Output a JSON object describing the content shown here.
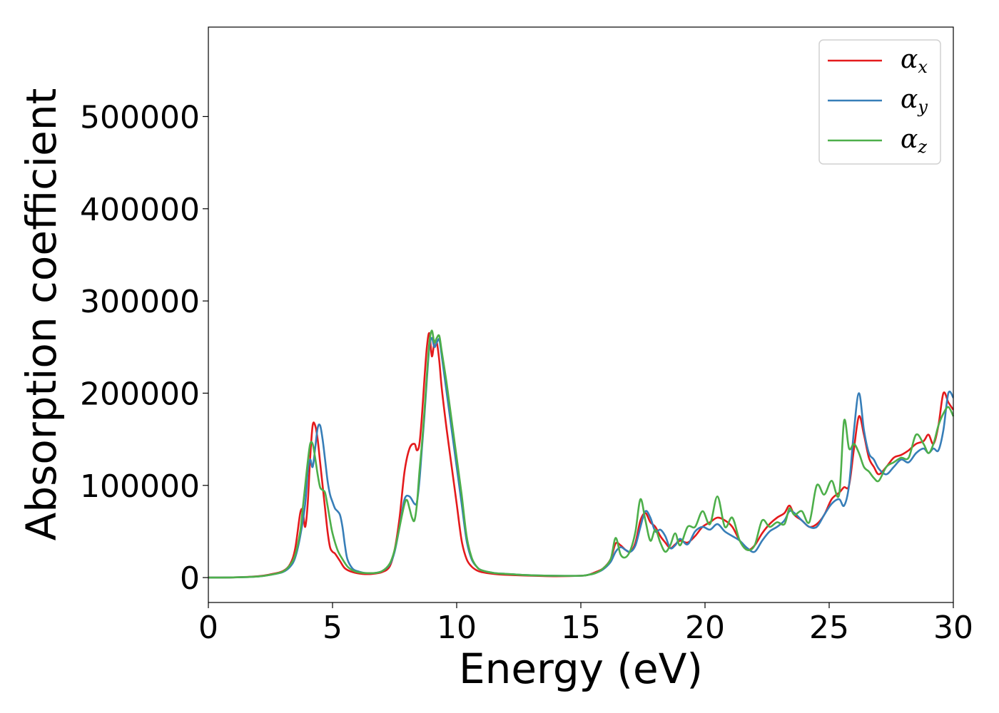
{
  "chart_data": {
    "type": "line",
    "title": "",
    "xlabel": "Energy (eV)",
    "ylabel": "Absorption coefficient",
    "xlim": [
      0,
      30
    ],
    "ylim": [
      -27000,
      597000
    ],
    "xticks": [
      0,
      5,
      10,
      15,
      20,
      25,
      30
    ],
    "xtick_labels": [
      "0",
      "5",
      "10",
      "15",
      "20",
      "25",
      "30"
    ],
    "yticks": [
      0,
      100000,
      200000,
      300000,
      400000,
      500000
    ],
    "ytick_labels": [
      "0",
      "100000",
      "200000",
      "300000",
      "400000",
      "500000"
    ],
    "grid": false,
    "legend_position": "top-right",
    "series": [
      {
        "name": "αx",
        "symbol": "α",
        "subscript": "x",
        "color": "#e41a1c",
        "x": [
          0,
          1,
          2,
          2.5,
          3,
          3.3,
          3.5,
          3.7,
          3.8,
          3.9,
          4.0,
          4.1,
          4.2,
          4.3,
          4.4,
          4.5,
          4.6,
          4.7,
          4.8,
          4.9,
          5.0,
          5.1,
          5.3,
          5.5,
          5.8,
          6.2,
          6.6,
          7.0,
          7.3,
          7.5,
          7.7,
          7.9,
          8.1,
          8.3,
          8.4,
          8.5,
          8.6,
          8.7,
          8.8,
          8.9,
          9.0,
          9.1,
          9.2,
          9.3,
          9.4,
          9.6,
          9.8,
          10.0,
          10.2,
          10.4,
          10.6,
          10.8,
          11.0,
          11.5,
          12,
          13,
          14,
          15,
          15.3,
          15.6,
          15.9,
          16.2,
          16.4,
          16.6,
          16.8,
          17.0,
          17.2,
          17.4,
          17.6,
          17.8,
          18.0,
          18.2,
          18.4,
          18.6,
          18.8,
          19.0,
          19.3,
          19.6,
          19.9,
          20.2,
          20.5,
          20.8,
          21.1,
          21.4,
          21.7,
          22.0,
          22.3,
          22.6,
          22.9,
          23.2,
          23.4,
          23.6,
          23.9,
          24.2,
          24.5,
          24.8,
          25.1,
          25.4,
          25.6,
          25.8,
          26.0,
          26.2,
          26.4,
          26.6,
          26.8,
          27.0,
          27.3,
          27.6,
          27.9,
          28.2,
          28.5,
          28.8,
          29.0,
          29.2,
          29.4,
          29.6,
          29.8,
          30.0
        ],
        "values": [
          0,
          200,
          1500,
          3500,
          7000,
          15000,
          32000,
          70000,
          72000,
          55000,
          80000,
          130000,
          165000,
          165000,
          150000,
          125000,
          100000,
          75000,
          50000,
          33000,
          28000,
          26000,
          18000,
          10000,
          6000,
          4000,
          4000,
          6000,
          12000,
          30000,
          65000,
          115000,
          140000,
          145000,
          138000,
          145000,
          175000,
          215000,
          250000,
          265000,
          240000,
          255000,
          255000,
          235000,
          205000,
          160000,
          120000,
          80000,
          40000,
          20000,
          12000,
          8000,
          6000,
          4000,
          3000,
          2000,
          1500,
          2000,
          3000,
          6000,
          10000,
          20000,
          37000,
          35000,
          30000,
          28000,
          38000,
          62000,
          70000,
          60000,
          55000,
          45000,
          38000,
          32000,
          36000,
          40000,
          38000,
          45000,
          55000,
          60000,
          65000,
          62000,
          55000,
          40000,
          30000,
          35000,
          48000,
          58000,
          65000,
          70000,
          78000,
          68000,
          62000,
          55000,
          58000,
          68000,
          85000,
          92000,
          98000,
          100000,
          140000,
          175000,
          155000,
          130000,
          120000,
          112000,
          120000,
          130000,
          133000,
          138000,
          145000,
          148000,
          155000,
          145000,
          165000,
          200000,
          190000,
          182000
        ]
      },
      {
        "name": "αy",
        "symbol": "α",
        "subscript": "y",
        "color": "#377eb8",
        "x": [
          0,
          1,
          2,
          2.5,
          3,
          3.3,
          3.5,
          3.7,
          3.9,
          4.0,
          4.1,
          4.2,
          4.3,
          4.4,
          4.5,
          4.6,
          4.7,
          4.8,
          4.9,
          5.0,
          5.1,
          5.2,
          5.3,
          5.4,
          5.5,
          5.6,
          5.8,
          6.0,
          6.3,
          6.7,
          7.0,
          7.3,
          7.5,
          7.7,
          7.9,
          8.1,
          8.3,
          8.4,
          8.5,
          8.6,
          8.7,
          8.8,
          8.9,
          9.0,
          9.1,
          9.2,
          9.3,
          9.4,
          9.6,
          9.8,
          10.0,
          10.2,
          10.4,
          10.6,
          10.8,
          11.0,
          11.5,
          12,
          13,
          14,
          15,
          15.3,
          15.6,
          15.9,
          16.2,
          16.4,
          16.6,
          16.8,
          17.0,
          17.2,
          17.4,
          17.6,
          17.8,
          18.0,
          18.2,
          18.4,
          18.6,
          18.8,
          19.0,
          19.3,
          19.6,
          19.9,
          20.2,
          20.5,
          20.8,
          21.1,
          21.4,
          21.7,
          22.0,
          22.3,
          22.6,
          22.9,
          23.2,
          23.4,
          23.6,
          23.9,
          24.2,
          24.5,
          24.8,
          25.1,
          25.4,
          25.6,
          25.8,
          26.0,
          26.2,
          26.4,
          26.6,
          26.8,
          27.0,
          27.3,
          27.6,
          27.9,
          28.2,
          28.5,
          28.8,
          29.0,
          29.2,
          29.4,
          29.6,
          29.8,
          30.0
        ],
        "values": [
          0,
          200,
          1200,
          3000,
          6000,
          12000,
          22000,
          45000,
          80000,
          115000,
          128000,
          120000,
          140000,
          162000,
          165000,
          150000,
          128000,
          105000,
          90000,
          82000,
          75000,
          72000,
          68000,
          55000,
          35000,
          20000,
          10000,
          7000,
          5000,
          5000,
          7000,
          14000,
          28000,
          55000,
          85000,
          88000,
          80000,
          82000,
          105000,
          140000,
          175000,
          215000,
          250000,
          260000,
          250000,
          255000,
          258000,
          240000,
          200000,
          160000,
          120000,
          80000,
          40000,
          20000,
          12000,
          8000,
          5000,
          4000,
          2500,
          2000,
          2000,
          3000,
          5000,
          9000,
          17000,
          28000,
          33000,
          30000,
          28000,
          35000,
          55000,
          72000,
          65000,
          50000,
          52000,
          45000,
          32000,
          35000,
          42000,
          36000,
          50000,
          55000,
          52000,
          58000,
          50000,
          45000,
          40000,
          32000,
          28000,
          40000,
          50000,
          55000,
          62000,
          72000,
          70000,
          62000,
          55000,
          55000,
          68000,
          80000,
          85000,
          78000,
          100000,
          160000,
          200000,
          160000,
          135000,
          128000,
          118000,
          112000,
          120000,
          128000,
          125000,
          135000,
          140000,
          135000,
          140000,
          138000,
          160000,
          200000,
          195000
        ]
      },
      {
        "name": "αz",
        "symbol": "α",
        "subscript": "z",
        "color": "#4daf4a",
        "x": [
          0,
          1,
          2,
          2.5,
          3,
          3.3,
          3.5,
          3.7,
          3.8,
          3.9,
          4.0,
          4.1,
          4.2,
          4.3,
          4.4,
          4.5,
          4.6,
          4.7,
          4.8,
          4.9,
          5.0,
          5.2,
          5.4,
          5.6,
          5.8,
          6.0,
          6.3,
          6.7,
          7.0,
          7.3,
          7.5,
          7.7,
          7.9,
          8.0,
          8.1,
          8.2,
          8.3,
          8.4,
          8.5,
          8.6,
          8.7,
          8.8,
          8.9,
          9.0,
          9.1,
          9.2,
          9.3,
          9.4,
          9.6,
          9.8,
          10.0,
          10.2,
          10.4,
          10.6,
          10.8,
          11.0,
          11.5,
          12,
          13,
          14,
          15,
          15.3,
          15.6,
          15.9,
          16.2,
          16.4,
          16.6,
          16.8,
          17.0,
          17.2,
          17.4,
          17.6,
          17.8,
          18.0,
          18.2,
          18.4,
          18.6,
          18.8,
          19.0,
          19.3,
          19.6,
          19.9,
          20.2,
          20.5,
          20.8,
          21.1,
          21.4,
          21.7,
          22.0,
          22.3,
          22.6,
          22.9,
          23.2,
          23.4,
          23.6,
          23.9,
          24.2,
          24.5,
          24.8,
          25.1,
          25.4,
          25.6,
          25.8,
          26.0,
          26.2,
          26.4,
          26.6,
          26.8,
          27.0,
          27.3,
          27.6,
          27.9,
          28.2,
          28.5,
          28.8,
          29.0,
          29.2,
          29.4,
          29.6,
          29.8,
          30.0
        ],
        "values": [
          0,
          200,
          1200,
          3000,
          6500,
          14000,
          25000,
          50000,
          75000,
          100000,
          125000,
          145000,
          145000,
          130000,
          112000,
          98000,
          95000,
          92000,
          78000,
          62000,
          48000,
          30000,
          20000,
          12000,
          8000,
          6000,
          5000,
          5000,
          7000,
          15000,
          30000,
          55000,
          80000,
          84000,
          75000,
          65000,
          62000,
          80000,
          115000,
          145000,
          180000,
          220000,
          255000,
          268000,
          255000,
          260000,
          262000,
          245000,
          210000,
          170000,
          130000,
          90000,
          45000,
          22000,
          12000,
          8000,
          5000,
          4000,
          2500,
          2000,
          2000,
          3000,
          5000,
          10000,
          20000,
          43000,
          25000,
          22000,
          30000,
          50000,
          85000,
          62000,
          40000,
          52000,
          38000,
          28000,
          35000,
          48000,
          35000,
          55000,
          55000,
          72000,
          58000,
          88000,
          55000,
          65000,
          40000,
          30000,
          35000,
          62000,
          55000,
          60000,
          58000,
          75000,
          68000,
          72000,
          60000,
          100000,
          90000,
          105000,
          90000,
          170000,
          140000,
          145000,
          135000,
          120000,
          115000,
          108000,
          105000,
          120000,
          125000,
          130000,
          130000,
          155000,
          145000,
          135000,
          145000,
          165000,
          178000,
          185000,
          175000
        ]
      }
    ]
  }
}
